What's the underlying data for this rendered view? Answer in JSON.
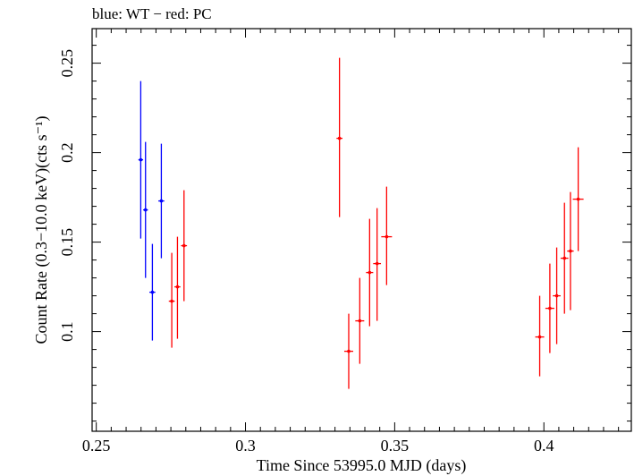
{
  "chart_data": {
    "type": "scatter",
    "title": "blue: WT − red: PC",
    "xlabel": "Time Since 53995.0 MJD (days)",
    "ylabel": "Count Rate (0.3−10.0 keV)(cts s⁻¹)",
    "xlim": [
      0.2486,
      0.4293
    ],
    "ylim": [
      0.0443,
      0.2693
    ],
    "x_ticks": [
      0.25,
      0.3,
      0.35,
      0.4
    ],
    "x_tick_labels": [
      "0.25",
      "0.3",
      "0.35",
      "0.4"
    ],
    "y_ticks": [
      0.1,
      0.15,
      0.2,
      0.25
    ],
    "y_tick_labels": [
      "0.1",
      "0.15",
      "0.2",
      "0.25"
    ],
    "grid": false,
    "series": [
      {
        "color": "#0000ff",
        "points": [
          {
            "x": 0.2649,
            "y": 0.196,
            "xerr": 0.0008,
            "ylo": 0.152,
            "yhi": 0.24
          },
          {
            "x": 0.2665,
            "y": 0.168,
            "xerr": 0.0008,
            "ylo": 0.13,
            "yhi": 0.206
          },
          {
            "x": 0.2688,
            "y": 0.122,
            "xerr": 0.001,
            "ylo": 0.095,
            "yhi": 0.149
          },
          {
            "x": 0.2718,
            "y": 0.173,
            "xerr": 0.001,
            "ylo": 0.141,
            "yhi": 0.205
          }
        ]
      },
      {
        "color": "#ff0000",
        "points": [
          {
            "x": 0.2753,
            "y": 0.117,
            "xerr": 0.001,
            "ylo": 0.091,
            "yhi": 0.144
          },
          {
            "x": 0.2772,
            "y": 0.125,
            "xerr": 0.001,
            "ylo": 0.096,
            "yhi": 0.153
          },
          {
            "x": 0.2794,
            "y": 0.148,
            "xerr": 0.001,
            "ylo": 0.117,
            "yhi": 0.179
          },
          {
            "x": 0.3315,
            "y": 0.208,
            "xerr": 0.001,
            "ylo": 0.164,
            "yhi": 0.253
          },
          {
            "x": 0.3346,
            "y": 0.089,
            "xerr": 0.0015,
            "ylo": 0.068,
            "yhi": 0.11
          },
          {
            "x": 0.3383,
            "y": 0.106,
            "xerr": 0.0015,
            "ylo": 0.082,
            "yhi": 0.13
          },
          {
            "x": 0.3416,
            "y": 0.133,
            "xerr": 0.0012,
            "ylo": 0.103,
            "yhi": 0.163
          },
          {
            "x": 0.3441,
            "y": 0.138,
            "xerr": 0.0013,
            "ylo": 0.106,
            "yhi": 0.169
          },
          {
            "x": 0.3473,
            "y": 0.153,
            "xerr": 0.0018,
            "ylo": 0.126,
            "yhi": 0.181
          },
          {
            "x": 0.3986,
            "y": 0.097,
            "xerr": 0.0015,
            "ylo": 0.075,
            "yhi": 0.12
          },
          {
            "x": 0.402,
            "y": 0.113,
            "xerr": 0.0015,
            "ylo": 0.088,
            "yhi": 0.138
          },
          {
            "x": 0.4043,
            "y": 0.12,
            "xerr": 0.0013,
            "ylo": 0.093,
            "yhi": 0.147
          },
          {
            "x": 0.4069,
            "y": 0.141,
            "xerr": 0.0013,
            "ylo": 0.11,
            "yhi": 0.172
          },
          {
            "x": 0.4089,
            "y": 0.145,
            "xerr": 0.0011,
            "ylo": 0.112,
            "yhi": 0.178
          },
          {
            "x": 0.4115,
            "y": 0.174,
            "xerr": 0.0018,
            "ylo": 0.145,
            "yhi": 0.203
          }
        ]
      }
    ]
  }
}
